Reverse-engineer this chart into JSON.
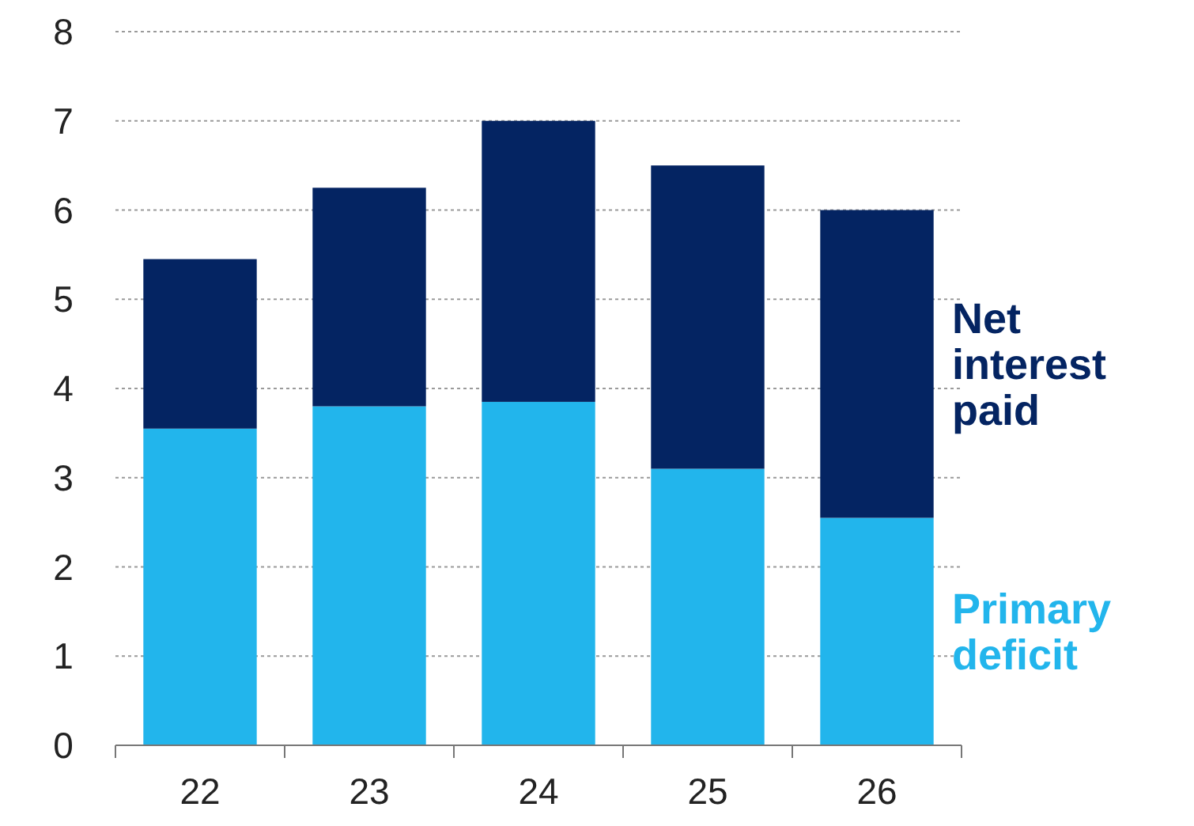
{
  "chart_data": {
    "type": "bar",
    "stacked": true,
    "categories": [
      "22",
      "23",
      "24",
      "25",
      "26"
    ],
    "series": [
      {
        "name": "Primary deficit",
        "color": "#22b5ec",
        "values": [
          3.55,
          3.8,
          3.85,
          3.1,
          2.55
        ]
      },
      {
        "name": "Net interest paid",
        "color": "#042462",
        "values": [
          1.9,
          2.45,
          3.15,
          3.4,
          3.45
        ]
      }
    ],
    "ylim": [
      0,
      8
    ],
    "yticks": [
      0,
      1,
      2,
      3,
      4,
      5,
      6,
      7,
      8
    ],
    "grid": "y",
    "legend": "right"
  }
}
